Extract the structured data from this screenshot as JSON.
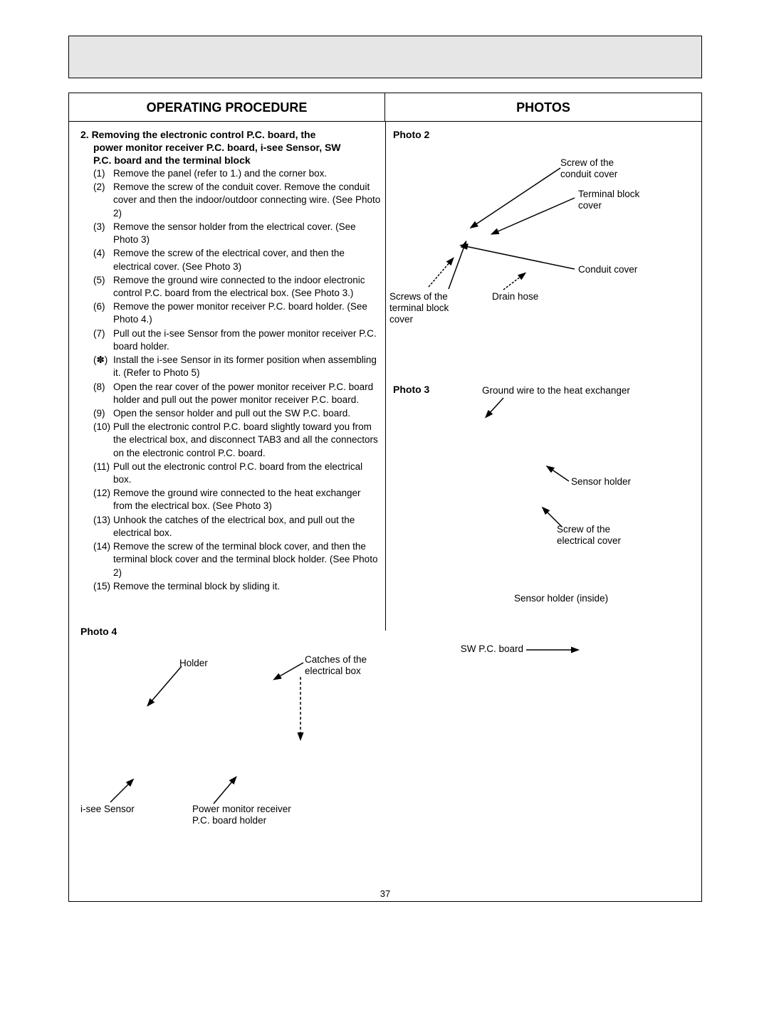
{
  "page_number": "37",
  "headers": {
    "left": "OPERATING PROCEDURE",
    "right": "PHOTOS"
  },
  "section_title_lines": [
    "2. Removing the electronic control P.C. board, the",
    "power monitor receiver P.C. board, i-see Sensor, SW",
    "P.C. board and the terminal block"
  ],
  "steps": [
    {
      "n": "(1)",
      "t": "Remove the panel (refer to 1.) and the corner box."
    },
    {
      "n": "(2)",
      "t": "Remove the screw of the conduit cover. Remove the conduit cover and then the indoor/outdoor connecting wire. (See Photo 2)"
    },
    {
      "n": "(3)",
      "t": "Remove the sensor holder from the electrical cover. (See Photo 3)"
    },
    {
      "n": "(4)",
      "t": "Remove the screw of the electrical cover, and then the electrical cover. (See Photo 3)"
    },
    {
      "n": "(5)",
      "t": "Remove the ground wire connected to the indoor electronic control P.C. board from the electrical box. (See Photo 3.)"
    },
    {
      "n": "(6)",
      "t": "Remove the power monitor receiver P.C. board holder. (See Photo 4.)"
    },
    {
      "n": "(7)",
      "t": "Pull out the i-see Sensor from the power monitor receiver P.C. board holder."
    },
    {
      "n": "(✽)",
      "t": "Install the i-see Sensor in its former position when assembling it. (Refer to Photo 5)"
    },
    {
      "n": "(8)",
      "t": "Open the rear cover of the power monitor receiver P.C. board holder and pull out the power monitor receiver P.C. board."
    },
    {
      "n": "(9)",
      "t": "Open the sensor holder and pull out the SW P.C. board."
    },
    {
      "n": "(10)",
      "t": "Pull the electronic control P.C. board slightly toward you from the electrical box, and disconnect TAB3 and all the connectors on the electronic control P.C. board."
    },
    {
      "n": "(11)",
      "t": "Pull out the electronic control P.C. board from the electrical box."
    },
    {
      "n": "(12)",
      "t": "Remove the ground wire connected to the heat exchanger from the electrical box. (See Photo 3)"
    },
    {
      "n": "(13)",
      "t": "Unhook the catches of the electrical box, and pull out the electrical box."
    },
    {
      "n": "(14)",
      "t": "Remove the screw of the terminal block cover, and then the terminal block cover and the terminal block holder. (See Photo 2)"
    },
    {
      "n": "(15)",
      "t": "Remove the terminal block by sliding it."
    }
  ],
  "photo2": {
    "label": "Photo 2",
    "callouts": {
      "screw_conduit": "Screw of the\nconduit cover",
      "terminal_block_cover": "Terminal block\ncover",
      "conduit_cover": "Conduit cover",
      "screws_tbc": "Screws of the\nterminal block\ncover",
      "drain_hose": "Drain hose"
    }
  },
  "photo3": {
    "label": "Photo 3",
    "callouts": {
      "ground_wire": "Ground wire to the heat exchanger",
      "sensor_holder": "Sensor holder",
      "screw_electrical": "Screw of the\nelectrical cover",
      "sensor_holder_inside": "Sensor holder (inside)",
      "sw_pc_board": "SW P.C. board"
    }
  },
  "photo4": {
    "label": "Photo 4",
    "callouts": {
      "holder": "Holder",
      "catches": "Catches of the\nelectrical box",
      "isee_sensor": "i-see Sensor",
      "pmr_holder": "Power monitor receiver\nP.C. board holder"
    }
  },
  "colors": {
    "text": "#000000",
    "border": "#000000",
    "header_bg": "#e6e6e6"
  }
}
